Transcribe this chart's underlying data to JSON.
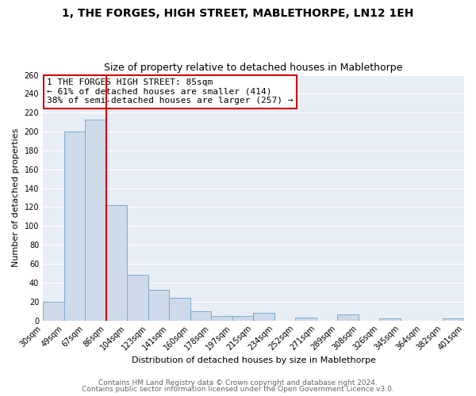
{
  "title": "1, THE FORGES, HIGH STREET, MABLETHORPE, LN12 1EH",
  "subtitle": "Size of property relative to detached houses in Mablethorpe",
  "xlabel": "Distribution of detached houses by size in Mablethorpe",
  "ylabel": "Number of detached properties",
  "bin_labels": [
    "30sqm",
    "49sqm",
    "67sqm",
    "86sqm",
    "104sqm",
    "123sqm",
    "141sqm",
    "160sqm",
    "178sqm",
    "197sqm",
    "215sqm",
    "234sqm",
    "252sqm",
    "271sqm",
    "289sqm",
    "308sqm",
    "326sqm",
    "345sqm",
    "364sqm",
    "382sqm",
    "401sqm"
  ],
  "bar_values": [
    20,
    200,
    213,
    122,
    48,
    32,
    24,
    10,
    5,
    5,
    8,
    0,
    3,
    0,
    6,
    0,
    2,
    0,
    0,
    2
  ],
  "bin_edges": [
    30,
    49,
    67,
    86,
    104,
    123,
    141,
    160,
    178,
    197,
    215,
    234,
    252,
    271,
    289,
    308,
    326,
    345,
    364,
    382,
    401
  ],
  "bar_color": "#ccdaea",
  "bar_edge_color": "#7aaace",
  "vline_x": 86,
  "vline_color": "#cc0000",
  "annotation_line1": "1 THE FORGES HIGH STREET: 85sqm",
  "annotation_line2": "← 61% of detached houses are smaller (414)",
  "annotation_line3": "38% of semi-detached houses are larger (257) →",
  "annotation_box_color": "#ffffff",
  "annotation_box_edge": "#cc0000",
  "ylim": [
    0,
    260
  ],
  "yticks": [
    0,
    20,
    40,
    60,
    80,
    100,
    120,
    140,
    160,
    180,
    200,
    220,
    240,
    260
  ],
  "footer1": "Contains HM Land Registry data © Crown copyright and database right 2024.",
  "footer2": "Contains public sector information licensed under the Open Government Licence v3.0.",
  "bg_color": "#ffffff",
  "plot_bg_color": "#e8eef5",
  "grid_color": "#ffffff",
  "title_fontsize": 10,
  "subtitle_fontsize": 9,
  "annotation_fontsize": 8,
  "axis_label_fontsize": 8,
  "tick_fontsize": 7,
  "footer_fontsize": 6.5
}
